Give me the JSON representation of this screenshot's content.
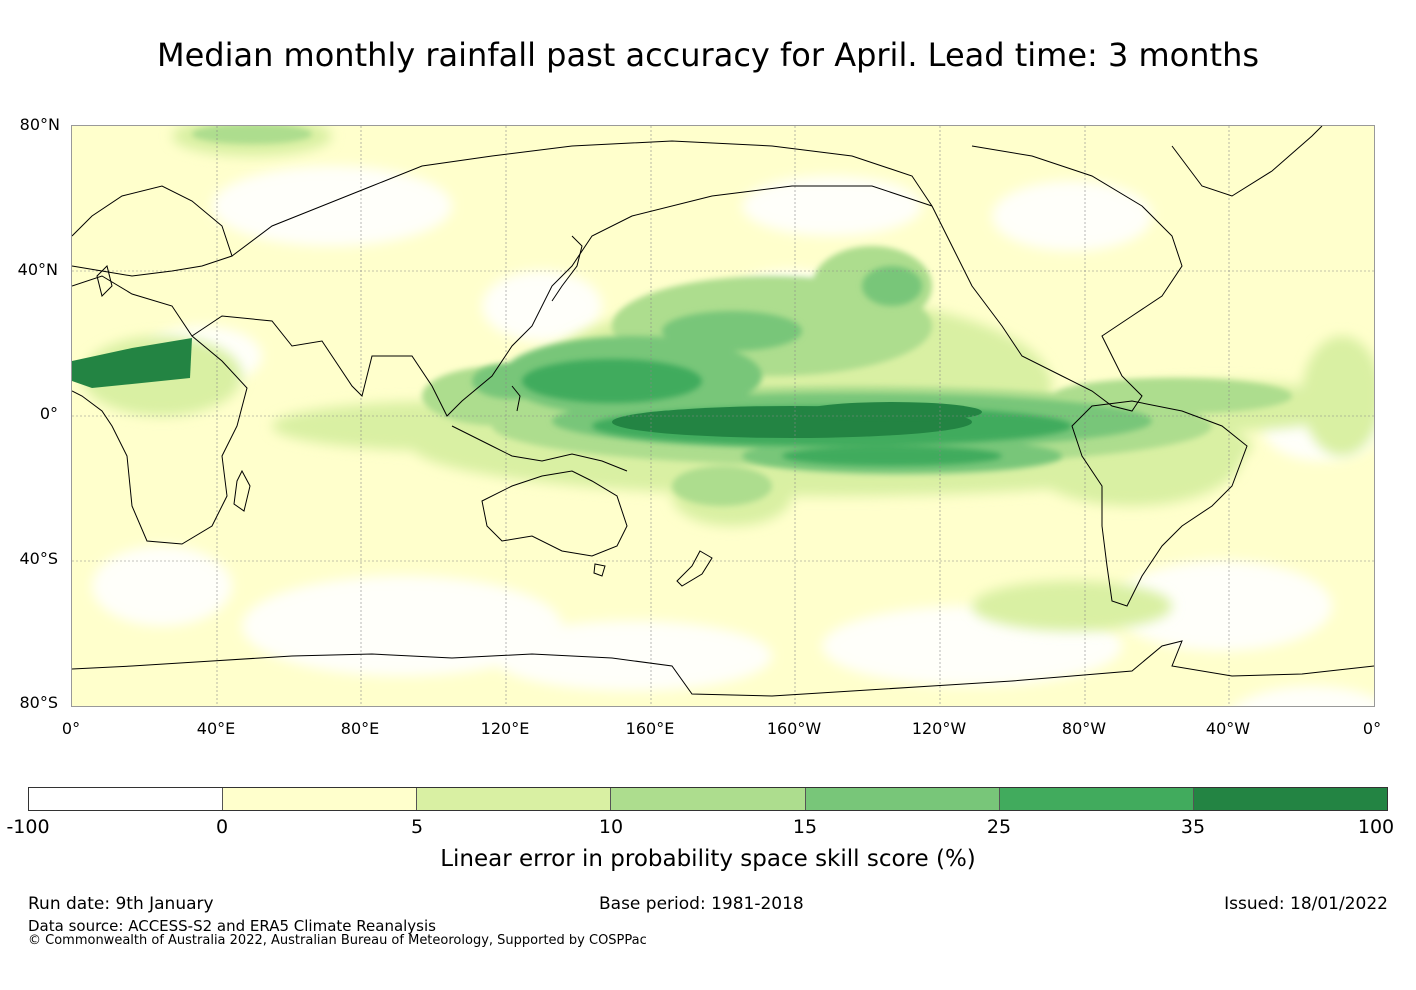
{
  "title": "Median monthly rainfall past accuracy for April. Lead time: 3 months",
  "map": {
    "lat_labels": [
      "80°N",
      "40°N",
      "0°",
      "40°S",
      "80°S"
    ],
    "lon_labels": [
      "0°",
      "40°E",
      "80°E",
      "120°E",
      "160°E",
      "160°W",
      "120°W",
      "80°W",
      "40°W",
      "0°"
    ]
  },
  "colorbar": {
    "ticks": [
      "-100",
      "0",
      "5",
      "10",
      "15",
      "25",
      "35",
      "100"
    ],
    "colors": [
      "#ffffff",
      "#ffffcc",
      "#d9f0a3",
      "#addd8e",
      "#78c679",
      "#41ab5d",
      "#238443"
    ],
    "label": "Linear error in probability space skill score (%)"
  },
  "footer": {
    "run_date": "Run date: 9th January",
    "base_period": "Base period: 1981-2018",
    "issued": "Issued: 18/01/2022",
    "data_source": "Data source: ACCESS-S2 and ERA5 Climate Reanalysis",
    "copyright": "© Commonwealth of Australia 2022, Australian Bureau of Meteorology, Supported by COSPPac"
  }
}
